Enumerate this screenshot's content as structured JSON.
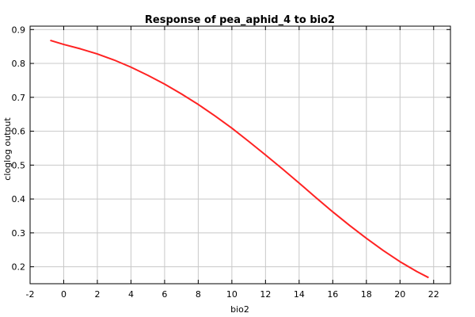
{
  "chart_data": {
    "type": "line",
    "title": "Response of pea_aphid_4 to bio2",
    "xlabel": "bio2",
    "ylabel": "cloglog output",
    "xlim": [
      -2,
      23
    ],
    "ylim": [
      0.15,
      0.91
    ],
    "xticks": [
      -2,
      0,
      2,
      4,
      6,
      8,
      10,
      12,
      14,
      16,
      18,
      20,
      22
    ],
    "yticks": [
      0.2,
      0.3,
      0.4,
      0.5,
      0.6,
      0.7,
      0.8,
      0.9
    ],
    "grid": true,
    "series": [
      {
        "color": "#ff2222",
        "x": [
          -0.8,
          0,
          1,
          2,
          3,
          4,
          5,
          6,
          7,
          8,
          9,
          10,
          11,
          12,
          13,
          14,
          15,
          16,
          17,
          18,
          19,
          20,
          21,
          21.7
        ],
        "y": [
          0.868,
          0.856,
          0.843,
          0.828,
          0.81,
          0.789,
          0.765,
          0.739,
          0.71,
          0.679,
          0.645,
          0.609,
          0.57,
          0.53,
          0.489,
          0.447,
          0.404,
          0.362,
          0.322,
          0.284,
          0.248,
          0.215,
          0.186,
          0.168
        ]
      }
    ]
  }
}
